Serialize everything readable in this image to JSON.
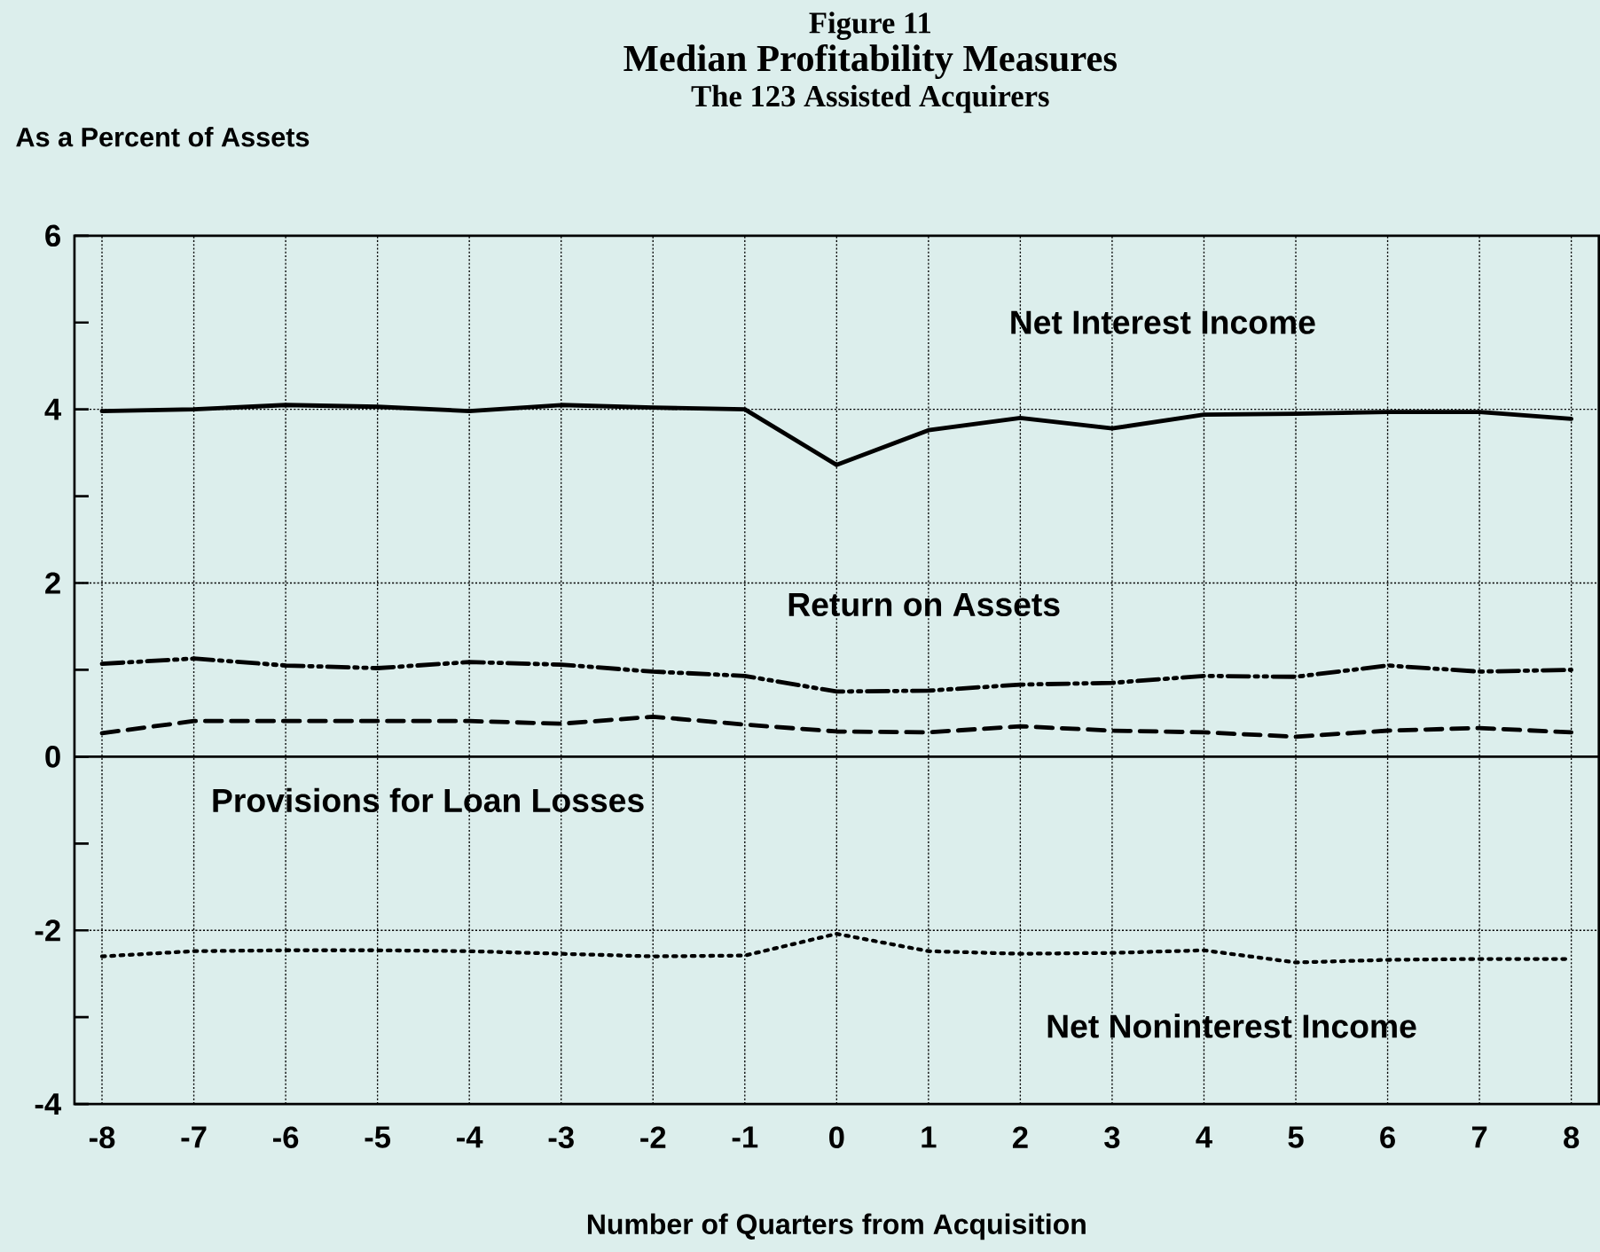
{
  "chart_data": {
    "type": "line",
    "title": "Median Profitability Measures",
    "subtitle": "The 123 Assisted Acquirers",
    "annotations": [
      "Figure 11"
    ],
    "xlabel": "Number of Quarters from Acquisition",
    "ylabel": "As a Percent of Assets",
    "x": [
      -8,
      -7,
      -6,
      -5,
      -4,
      -3,
      -2,
      -1,
      0,
      1,
      2,
      3,
      4,
      5,
      6,
      7,
      8
    ],
    "xlim": [
      -8.3,
      8.3
    ],
    "xticks": [
      -8,
      -7,
      -6,
      -5,
      -4,
      -3,
      -2,
      -1,
      0,
      1,
      2,
      3,
      4,
      5,
      6,
      7,
      8
    ],
    "ylim": [
      -4,
      6
    ],
    "yticks": [
      -4,
      {
        "value": -3,
        "label": null
      },
      -2,
      {
        "value": -1,
        "label": null
      },
      0,
      {
        "value": 1,
        "label": null
      },
      2,
      {
        "value": 3,
        "label": null
      },
      4,
      {
        "value": 5,
        "label": null
      },
      6
    ],
    "grid": true,
    "series": [
      {
        "name": "Net Interest Income",
        "color": "#000000",
        "line_style": "solid",
        "values": [
          3.98,
          4.0,
          4.05,
          4.03,
          3.98,
          4.05,
          4.02,
          4.0,
          3.36,
          3.76,
          3.9,
          3.78,
          3.94,
          3.95,
          3.97,
          3.97,
          3.89
        ]
      },
      {
        "name": "Return on Assets",
        "color": "#000000",
        "line_style": "dashdotdotted",
        "values": [
          1.07,
          1.13,
          1.05,
          1.02,
          1.09,
          1.06,
          0.98,
          0.93,
          0.75,
          0.76,
          0.83,
          0.85,
          0.93,
          0.92,
          1.05,
          0.98,
          1.0
        ]
      },
      {
        "name": "Provisions for Loan Losses",
        "color": "#000000",
        "line_style": "dashed",
        "values": [
          0.27,
          0.41,
          0.41,
          0.41,
          0.41,
          0.38,
          0.46,
          0.37,
          0.29,
          0.28,
          0.35,
          0.3,
          0.28,
          0.23,
          0.3,
          0.33,
          0.28
        ]
      },
      {
        "name": "Net Noninterest Income",
        "color": "#000000",
        "line_style": "dotted",
        "values": [
          -2.3,
          -2.24,
          -2.23,
          -2.23,
          -2.24,
          -2.27,
          -2.3,
          -2.29,
          -2.04,
          -2.24,
          -2.27,
          -2.26,
          -2.23,
          -2.37,
          -2.34,
          -2.33,
          -2.33
        ]
      }
    ]
  }
}
